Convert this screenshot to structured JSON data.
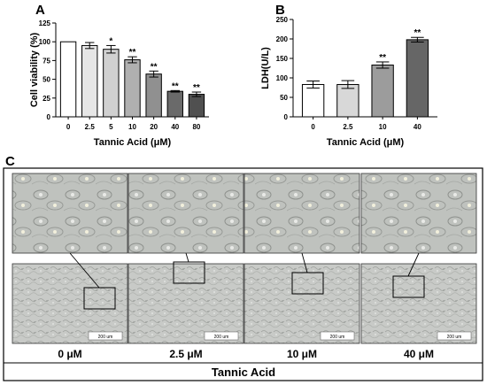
{
  "panels": {
    "a_label": "A",
    "b_label": "B",
    "c_label": "C"
  },
  "chart_data": [
    {
      "panel": "A",
      "type": "bar",
      "categories": [
        "0",
        "2.5",
        "5",
        "10",
        "20",
        "40",
        "80"
      ],
      "values": [
        100,
        95,
        90,
        76,
        57,
        34,
        30
      ],
      "errors": [
        0,
        4,
        5,
        4,
        4,
        1,
        3
      ],
      "significance": [
        "",
        "",
        "*",
        "**",
        "**",
        "**",
        "**"
      ],
      "bar_colors": [
        "#ffffff",
        "#e6e6e6",
        "#d0d0d0",
        "#b0b0b0",
        "#909090",
        "#6a6a6a",
        "#505050"
      ],
      "ylabel": "Cell viability (%)",
      "xlabel": "Tannic Acid (μM)",
      "ylim": [
        0,
        125
      ],
      "yticks": [
        0,
        25,
        50,
        75,
        100,
        125
      ]
    },
    {
      "panel": "B",
      "type": "bar",
      "categories": [
        "0",
        "2.5",
        "10",
        "40"
      ],
      "values": [
        83,
        83,
        133,
        198
      ],
      "errors": [
        9,
        10,
        8,
        6
      ],
      "significance": [
        "",
        "",
        "**",
        "**"
      ],
      "bar_colors": [
        "#ffffff",
        "#d8d8d8",
        "#9c9c9c",
        "#666666"
      ],
      "ylabel": "LDH(U/L)",
      "xlabel": "Tannic Acid (μM)",
      "ylim": [
        0,
        250
      ],
      "yticks": [
        0,
        50,
        100,
        150,
        200,
        250
      ]
    }
  ],
  "micrographs": {
    "doses": [
      "0 μM",
      "2.5 μM",
      "10 μM",
      "40 μM"
    ],
    "scale_bar": "200 um",
    "footer_label": "Tannic Acid"
  },
  "colors": {
    "axis": "#000000",
    "micrograph_bg": "#c9cbc8",
    "micrograph_zoom_bg": "#bcbfbb"
  }
}
